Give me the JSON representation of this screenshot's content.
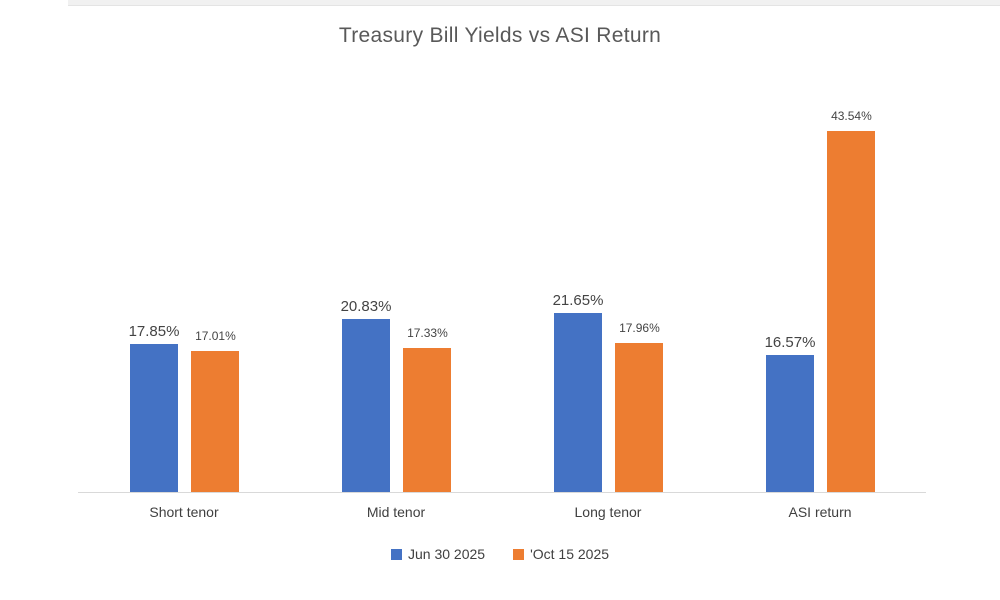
{
  "chart_data": {
    "type": "bar",
    "title": "Treasury Bill Yields vs ASI Return",
    "categories": [
      "Short tenor",
      "Mid tenor",
      "Long tenor",
      "ASI return"
    ],
    "series": [
      {
        "name": "Jun 30 2025",
        "color": "#4472C4",
        "values": [
          17.85,
          20.83,
          21.65,
          16.57
        ],
        "labels": [
          "17.85%",
          "20.83%",
          "21.65%",
          "16.57%"
        ]
      },
      {
        "name": "'Oct 15 2025",
        "color": "#ED7D31",
        "values": [
          17.01,
          17.33,
          17.96,
          43.54
        ],
        "labels": [
          "17.01%",
          "17.33%",
          "17.96%",
          "43.54%"
        ]
      }
    ],
    "xlabel": "",
    "ylabel": "",
    "ylim": [
      0,
      45
    ],
    "grid": false,
    "y_axis_ticks_visible": false,
    "data_labels": true,
    "legend_position": "bottom",
    "axis_line_color": "#d9d9d9",
    "title_color": "#595959",
    "text_color": "#404040"
  }
}
